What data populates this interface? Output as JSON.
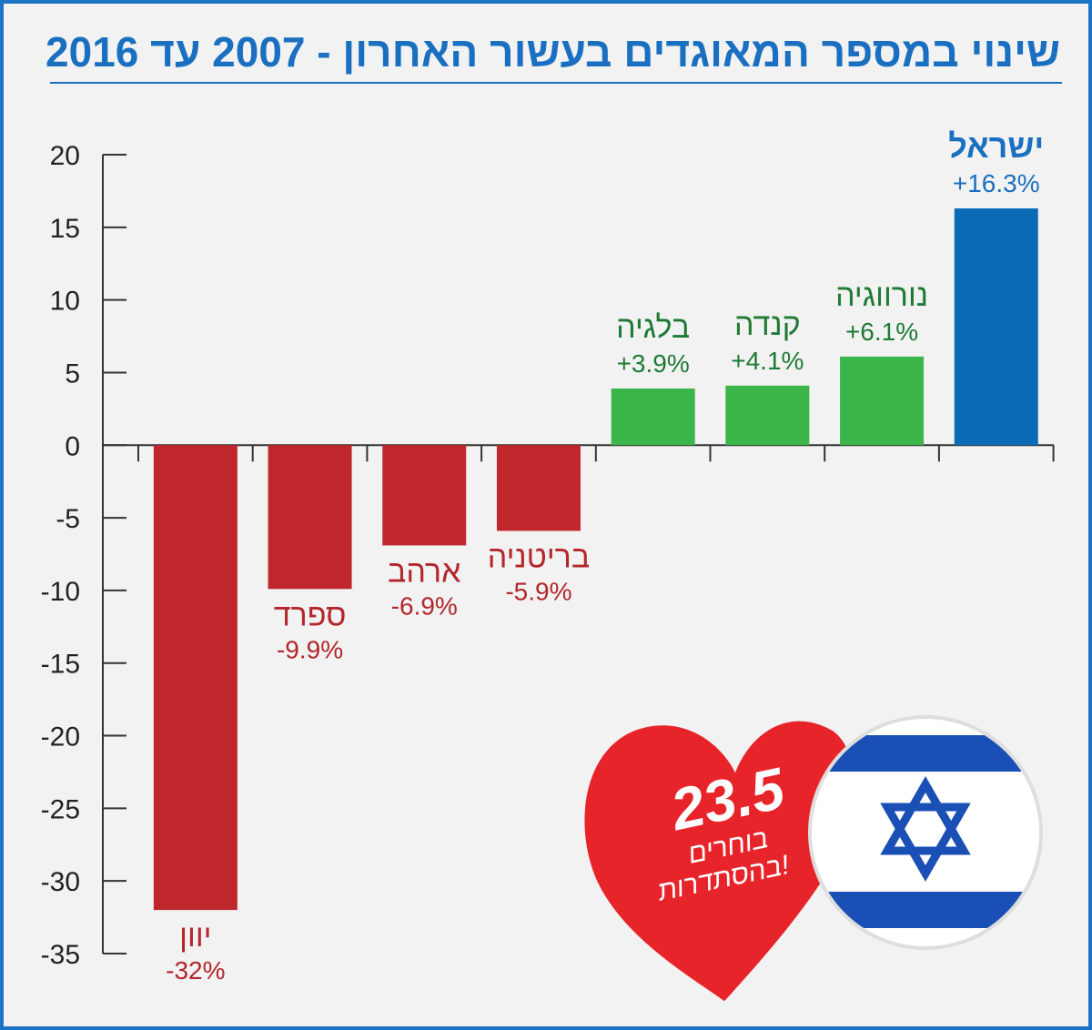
{
  "title": "שינוי במספר המאוגדים בעשור האחרון - 2007 עד 2016",
  "colors": {
    "negative": "#c0272d",
    "positive": "#3bb44a",
    "highlight": "#0a6ab6",
    "negative_text": "#b4262c",
    "positive_text": "#1f7a35",
    "highlight_text": "#1a6fc0",
    "axis": "#333333",
    "heart": "#e8242b",
    "flag_blue": "#1a4fb5"
  },
  "chart_data": {
    "type": "bar",
    "title": "שינוי במספר המאוגדים בעשור האחרון - 2007 עד 2016",
    "ylim": [
      -35,
      20
    ],
    "yticks": [
      20,
      15,
      10,
      5,
      0,
      -5,
      -10,
      -15,
      -20,
      -25,
      -30,
      -35
    ],
    "categories": [
      "יוון",
      "ספרד",
      "ארהב",
      "בריטניה",
      "בלגיה",
      "קנדה",
      "נורווגיה",
      "ישראל"
    ],
    "values": [
      -32,
      -9.9,
      -6.9,
      -5.9,
      3.9,
      4.1,
      6.1,
      16.3
    ],
    "value_labels": [
      "-32%",
      "-9.9%",
      "-6.9%",
      "-5.9%",
      "+3.9%",
      "+4.1%",
      "+6.1%",
      "+16.3%"
    ],
    "xlabel": "",
    "ylabel": ""
  },
  "badge": {
    "number": "23.5",
    "line1": "בוחרים",
    "line2": "בהסתדרות!"
  }
}
